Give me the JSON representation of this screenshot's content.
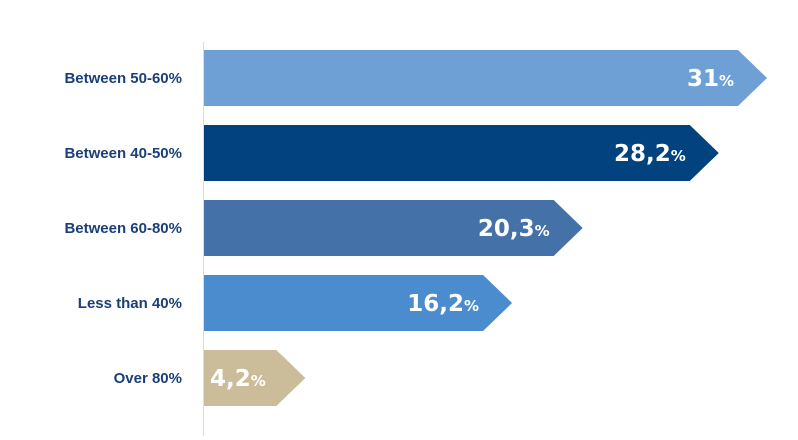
{
  "chart_data": {
    "type": "bar",
    "orientation": "horizontal",
    "categories": [
      "Between 50-60%",
      "Between 40-50%",
      "Between 60-80%",
      "Less than 40%",
      "Over 80%"
    ],
    "values": [
      31,
      28.2,
      20.3,
      16.2,
      4.2
    ],
    "value_labels": [
      "31",
      "28,2",
      "20,3",
      "16,2",
      "4,2"
    ],
    "value_unit": "%",
    "colors": [
      "#6ea0d6",
      "#02427f",
      "#4472a8",
      "#4a8ccd",
      "#cbbd99"
    ],
    "axis_line_color": "#dcdcdc",
    "label_color": "#1c3f78",
    "xlim": [
      0,
      31
    ],
    "grid": false
  }
}
